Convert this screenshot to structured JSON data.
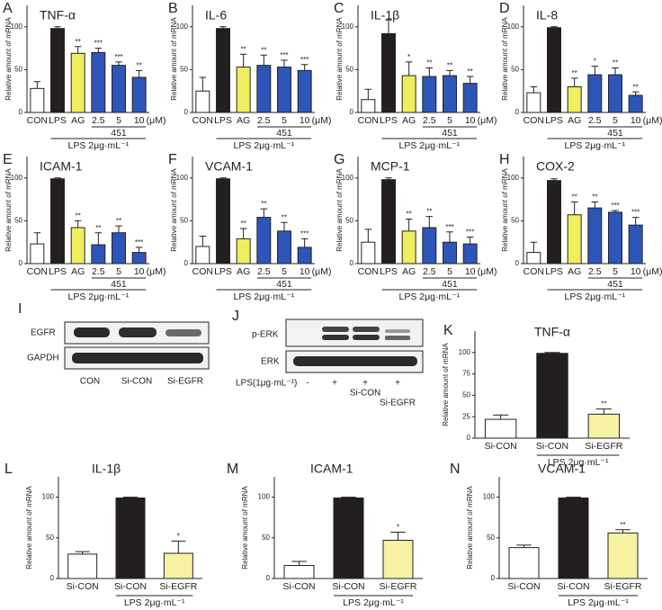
{
  "chart_data": [
    {
      "type": "bar",
      "panel": "A",
      "title": "TNF-α",
      "ylabel": "Relative amount of mRNA",
      "categories": [
        "CON",
        "LPS",
        "AG",
        "2.5",
        "5",
        "10"
      ],
      "values": [
        28,
        98,
        69,
        70,
        55,
        41
      ],
      "errors": [
        8,
        2,
        8,
        5,
        4,
        8
      ],
      "sig": [
        null,
        null,
        "**",
        "***",
        "***",
        "**"
      ],
      "colors": [
        "#ffffff",
        "#231f20",
        "#eeee5e",
        "#2e55b8",
        "#2e55b8",
        "#2e55b8"
      ],
      "ylim": [
        0,
        125
      ],
      "yticks": [
        0,
        50,
        100
      ],
      "group_label": "451",
      "unit": "(μM)",
      "treatment": "LPS 2μg·mL⁻¹"
    },
    {
      "type": "bar",
      "panel": "B",
      "title": "IL-6",
      "ylabel": "Relative amount of mRNA",
      "categories": [
        "CON",
        "LPS",
        "AG",
        "2.5",
        "5",
        "10"
      ],
      "values": [
        25,
        98,
        53,
        55,
        53,
        49
      ],
      "errors": [
        16,
        2,
        15,
        12,
        8,
        7
      ],
      "sig": [
        null,
        null,
        "**",
        "**",
        "***",
        "***"
      ],
      "colors": [
        "#ffffff",
        "#231f20",
        "#eeee5e",
        "#2e55b8",
        "#2e55b8",
        "#2e55b8"
      ],
      "ylim": [
        0,
        125
      ],
      "yticks": [
        0,
        50,
        100
      ],
      "group_label": "451",
      "unit": "(μM)",
      "treatment": "LPS 2μg·mL⁻¹"
    },
    {
      "type": "bar",
      "panel": "C",
      "title": "IL-1β",
      "ylabel": "Relative amount of mRNA",
      "categories": [
        "CON",
        "LPS",
        "AG",
        "2.5",
        "5",
        "10"
      ],
      "values": [
        15,
        92,
        43,
        42,
        43,
        34
      ],
      "errors": [
        12,
        16,
        16,
        10,
        6,
        8
      ],
      "sig": [
        null,
        null,
        "*",
        "**",
        "**",
        "**"
      ],
      "colors": [
        "#ffffff",
        "#231f20",
        "#eeee5e",
        "#2e55b8",
        "#2e55b8",
        "#2e55b8"
      ],
      "ylim": [
        0,
        125
      ],
      "yticks": [
        0,
        50,
        100
      ],
      "group_label": "451",
      "unit": "(μM)",
      "treatment": "LPS 2μg·mL⁻¹"
    },
    {
      "type": "bar",
      "panel": "D",
      "title": "IL-8",
      "ylabel": "Relative amount of mRNA",
      "categories": [
        "CON",
        "LPS",
        "AG",
        "2.5",
        "5",
        "10"
      ],
      "values": [
        23,
        99,
        30,
        44,
        44,
        20
      ],
      "errors": [
        7,
        1,
        10,
        10,
        8,
        4
      ],
      "sig": [
        null,
        null,
        "**",
        "*",
        "**",
        "**"
      ],
      "colors": [
        "#ffffff",
        "#231f20",
        "#eeee5e",
        "#2e55b8",
        "#2e55b8",
        "#2e55b8"
      ],
      "ylim": [
        0,
        125
      ],
      "yticks": [
        0,
        50,
        100
      ],
      "group_label": "451",
      "unit": "(μM)",
      "treatment": "LPS 2μg·mL⁻¹"
    },
    {
      "type": "bar",
      "panel": "E",
      "title": "ICAM-1",
      "ylabel": "Relative amount of mRNA",
      "categories": [
        "CON",
        "LPS",
        "AG",
        "2.5",
        "5",
        "10"
      ],
      "values": [
        23,
        99,
        42,
        22,
        36,
        13
      ],
      "errors": [
        13,
        1,
        8,
        14,
        8,
        6
      ],
      "sig": [
        null,
        null,
        "**",
        "**",
        "**",
        "***"
      ],
      "colors": [
        "#ffffff",
        "#231f20",
        "#eeee5e",
        "#2e55b8",
        "#2e55b8",
        "#2e55b8"
      ],
      "ylim": [
        0,
        125
      ],
      "yticks": [
        0,
        50,
        100
      ],
      "group_label": "451",
      "unit": "(μM)",
      "treatment": "LPS 2μg·mL⁻¹"
    },
    {
      "type": "bar",
      "panel": "F",
      "title": "VCAM-1",
      "ylabel": "Relative amount of mRNA",
      "categories": [
        "CON",
        "LPS",
        "AG",
        "2.5",
        "5",
        "10"
      ],
      "values": [
        20,
        99,
        29,
        54,
        38,
        19
      ],
      "errors": [
        12,
        1,
        12,
        10,
        10,
        10
      ],
      "sig": [
        null,
        null,
        "**",
        "**",
        "**",
        "***"
      ],
      "colors": [
        "#ffffff",
        "#231f20",
        "#eeee5e",
        "#2e55b8",
        "#2e55b8",
        "#2e55b8"
      ],
      "ylim": [
        0,
        125
      ],
      "yticks": [
        0,
        50,
        100
      ],
      "group_label": "451",
      "unit": "(μM)",
      "treatment": "LPS 2μg·mL⁻¹"
    },
    {
      "type": "bar",
      "panel": "G",
      "title": "MCP-1",
      "ylabel": "Relative amount of mRNA",
      "categories": [
        "CON",
        "LPS",
        "AG",
        "2.5",
        "5",
        "10"
      ],
      "values": [
        25,
        98,
        38,
        42,
        25,
        23
      ],
      "errors": [
        15,
        2,
        14,
        13,
        12,
        8
      ],
      "sig": [
        null,
        null,
        "**",
        "**",
        "***",
        "***"
      ],
      "colors": [
        "#ffffff",
        "#231f20",
        "#eeee5e",
        "#2e55b8",
        "#2e55b8",
        "#2e55b8"
      ],
      "ylim": [
        0,
        125
      ],
      "yticks": [
        0,
        50,
        100
      ],
      "group_label": "451",
      "unit": "(μM)",
      "treatment": "LPS 2μg·mL⁻¹"
    },
    {
      "type": "bar",
      "panel": "H",
      "title": "COX-2",
      "ylabel": "Relative amount of mRNA",
      "categories": [
        "CON",
        "LPS",
        "AG",
        "2.5",
        "5",
        "10"
      ],
      "values": [
        13,
        97,
        57,
        65,
        60,
        45
      ],
      "errors": [
        12,
        2,
        15,
        7,
        2,
        9
      ],
      "sig": [
        null,
        null,
        "**",
        "**",
        "***",
        "***"
      ],
      "colors": [
        "#ffffff",
        "#231f20",
        "#eeee5e",
        "#2e55b8",
        "#2e55b8",
        "#2e55b8"
      ],
      "ylim": [
        0,
        125
      ],
      "yticks": [
        0,
        50,
        100
      ],
      "group_label": "451",
      "unit": "(μM)",
      "treatment": "LPS 2μg·mL⁻¹"
    },
    {
      "type": "bar",
      "panel": "K",
      "title": "TNF-α",
      "ylabel": "Relative amount of mRNA",
      "categories": [
        "Si-CON",
        "Si-CON",
        "Si-EGFR"
      ],
      "values": [
        22,
        99,
        28
      ],
      "errors": [
        5,
        1,
        6
      ],
      "sig": [
        null,
        null,
        "**"
      ],
      "colors": [
        "#ffffff",
        "#231f20",
        "#f6f2a2"
      ],
      "ylim": [
        0,
        125
      ],
      "yticks": [
        0,
        25,
        50,
        75,
        100
      ],
      "treatment": "LPS 2μg·mL⁻¹"
    },
    {
      "type": "bar",
      "panel": "L",
      "title": "IL-1β",
      "ylabel": "Relative amount of mRNA",
      "categories": [
        "Si-CON",
        "Si-CON",
        "Si-EGFR"
      ],
      "values": [
        30,
        99,
        31
      ],
      "errors": [
        3,
        1,
        15
      ],
      "sig": [
        null,
        null,
        "*"
      ],
      "colors": [
        "#ffffff",
        "#231f20",
        "#f6f2a2"
      ],
      "ylim": [
        0,
        125
      ],
      "yticks": [
        0,
        50,
        100
      ],
      "treatment": "LPS 2μg·mL⁻¹"
    },
    {
      "type": "bar",
      "panel": "M",
      "title": "ICAM-1",
      "ylabel": "Relative amount of mRNA",
      "categories": [
        "Si-CON",
        "Si-CON",
        "Si-EGFR"
      ],
      "values": [
        16,
        99,
        47
      ],
      "errors": [
        5,
        1,
        10
      ],
      "sig": [
        null,
        null,
        "*"
      ],
      "colors": [
        "#ffffff",
        "#231f20",
        "#f6f2a2"
      ],
      "ylim": [
        0,
        125
      ],
      "yticks": [
        0,
        50,
        100
      ],
      "treatment": "LPS 2μg·mL⁻¹"
    },
    {
      "type": "bar",
      "panel": "N",
      "title": "VCAM-1",
      "ylabel": "Relative amount of mRNA",
      "categories": [
        "Si-CON",
        "Si-CON",
        "Si-EGFR"
      ],
      "values": [
        38,
        99,
        56
      ],
      "errors": [
        3,
        1,
        4
      ],
      "sig": [
        null,
        null,
        "**"
      ],
      "colors": [
        "#ffffff",
        "#231f20",
        "#f6f2a2"
      ],
      "ylim": [
        0,
        125
      ],
      "yticks": [
        0,
        50,
        100
      ],
      "treatment": "LPS 2μg·mL⁻¹"
    }
  ],
  "blots": {
    "I": {
      "panel": "I",
      "rows": [
        "EGFR",
        "GAPDH"
      ],
      "lanes": [
        "CON",
        "Si-CON",
        "Si-EGFR"
      ]
    },
    "J": {
      "panel": "J",
      "rows": [
        "p-ERK",
        "ERK"
      ],
      "treatment": "LPS(1μg·mL⁻¹)",
      "signs": [
        "-",
        "+",
        "+",
        "+"
      ],
      "lanes": [
        "Si-CON",
        "Si-EGFR"
      ]
    }
  }
}
